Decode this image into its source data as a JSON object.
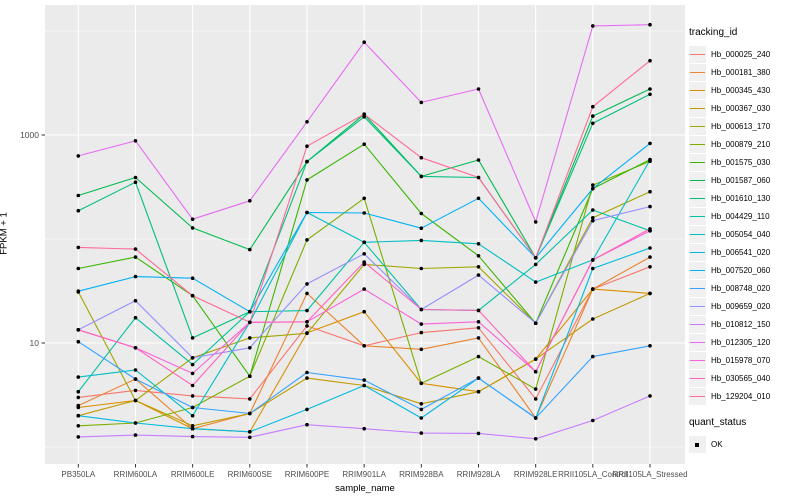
{
  "ui": {
    "panel_bg": "#EBEBEB",
    "grid_color": "#FFFFFF",
    "tick_label_color": "#4D4D4D",
    "tick_mark_color": "#333333",
    "point_color": "#000000",
    "legend_key_bg": "#F0F0F0"
  },
  "chart_data": {
    "type": "line",
    "title": "",
    "xlabel": "sample_name",
    "ylabel": "FPKM + 1",
    "y_scale": "log10",
    "y_ticks_labeled": [
      10,
      1000
    ],
    "y_minor_gridlines": [
      1,
      100,
      10000
    ],
    "ylim_log10": [
      -0.25,
      4.25
    ],
    "grid": true,
    "legend_position": "right",
    "legend_title": "tracking_id",
    "legend2_title": "quant_status",
    "legend2_items": [
      "OK"
    ],
    "categories": [
      "PB350LA",
      "RRIM600LA",
      "RRIM600LE",
      "RRIM600SE",
      "RRIM600PE",
      "RRIM901LA",
      "RRIM928BA",
      "RRIM928LA",
      "RRIM928LE",
      "RRII105LA_Control",
      "RRII105LA_Stressed"
    ],
    "series": [
      {
        "name": "Hb_000025_240",
        "color": "#F8766D",
        "values": [
          3.0,
          3.5,
          3.1,
          2.9,
          14.6,
          9.4,
          12.6,
          14.0,
          2.9,
          33,
          54
        ]
      },
      {
        "name": "Hb_000181_380",
        "color": "#EA8331",
        "values": [
          2.5,
          4.5,
          1.5,
          2.1,
          30,
          9.4,
          8.7,
          11.2,
          1.9,
          33,
          67
        ]
      },
      {
        "name": "Hb_000345_430",
        "color": "#D89000",
        "values": [
          2.4,
          2.8,
          1.5,
          1.4,
          12.5,
          20,
          4.1,
          3.4,
          7.0,
          33,
          30
        ]
      },
      {
        "name": "Hb_000367_030",
        "color": "#C09B00",
        "values": [
          2.0,
          2.8,
          1.6,
          2.1,
          4.6,
          3.9,
          2.6,
          3.4,
          7.0,
          17,
          30
        ]
      },
      {
        "name": "Hb_000613_170",
        "color": "#A3A500",
        "values": [
          31,
          2.8,
          7.2,
          11.2,
          12.4,
          57,
          52,
          54,
          15.5,
          160,
          285
        ]
      },
      {
        "name": "Hb_000879_210",
        "color": "#7CAE00",
        "values": [
          1.6,
          1.7,
          2.4,
          4.8,
          98,
          246,
          4.1,
          7.4,
          3.6,
          330,
          560
        ]
      },
      {
        "name": "Hb_001575_030",
        "color": "#39B600",
        "values": [
          52,
          67,
          28.5,
          4.8,
          370,
          815,
          176,
          69,
          15.5,
          305,
          580
        ]
      },
      {
        "name": "Hb_001587_060",
        "color": "#00BB4E",
        "values": [
          262,
          390,
          128,
          79,
          555,
          1585,
          400,
          575,
          66,
          1520,
          2770
        ]
      },
      {
        "name": "Hb_001610_130",
        "color": "#00BF7D",
        "values": [
          187,
          352,
          11.2,
          20,
          555,
          1495,
          400,
          390,
          66,
          1295,
          2460
        ]
      },
      {
        "name": "Hb_004429_110",
        "color": "#00C1A3",
        "values": [
          3.4,
          17.5,
          6.2,
          20,
          20.5,
          93,
          21,
          20.6,
          57,
          190,
          120
        ]
      },
      {
        "name": "Hb_005054_040",
        "color": "#00BFC4",
        "values": [
          4.7,
          5.5,
          2.0,
          15.8,
          180,
          93,
          97,
          90,
          38.5,
          63,
          575
        ]
      },
      {
        "name": "Hb_006541_020",
        "color": "#00BAE0",
        "values": [
          2.0,
          1.7,
          1.5,
          1.4,
          2.3,
          3.9,
          1.9,
          4.6,
          1.9,
          52,
          82
        ]
      },
      {
        "name": "Hb_007520_060",
        "color": "#00B0F6",
        "values": [
          31.5,
          43.5,
          42,
          20,
          180,
          178,
          127,
          246,
          66,
          305,
          830
        ]
      },
      {
        "name": "Hb_008748_020",
        "color": "#35A2FF",
        "values": [
          10.3,
          4.5,
          2.4,
          2.1,
          5.2,
          4.4,
          2.3,
          4.6,
          1.9,
          7.4,
          9.4
        ]
      },
      {
        "name": "Hb_009659_020",
        "color": "#9590FF",
        "values": [
          13.4,
          25.5,
          7.2,
          9.0,
          37,
          72,
          21,
          45,
          15.5,
          150,
          205
        ]
      },
      {
        "name": "Hb_010812_150",
        "color": "#C77CFF",
        "values": [
          1.25,
          1.3,
          1.26,
          1.24,
          1.64,
          1.5,
          1.36,
          1.35,
          1.2,
          1.8,
          3.1
        ]
      },
      {
        "name": "Hb_012305_120",
        "color": "#E76BF3",
        "values": [
          630,
          880,
          155,
          233,
          1340,
          7800,
          2060,
          2770,
          146,
          11200,
          11500
        ]
      },
      {
        "name": "Hb_015978_070",
        "color": "#FA62DB",
        "values": [
          13.4,
          9.0,
          5.1,
          15.8,
          16,
          33,
          15.2,
          16,
          5.3,
          63,
          120
        ]
      },
      {
        "name": "Hb_030565_040",
        "color": "#FF62BC",
        "values": [
          13.4,
          9.0,
          3.9,
          15.8,
          16,
          60,
          21,
          20.6,
          5.3,
          63,
          125
        ]
      },
      {
        "name": "Hb_129204_010",
        "color": "#FF6A98",
        "values": [
          83,
          80,
          28.5,
          15.8,
          780,
          1585,
          605,
          390,
          66,
          1870,
          5180
        ]
      }
    ]
  }
}
